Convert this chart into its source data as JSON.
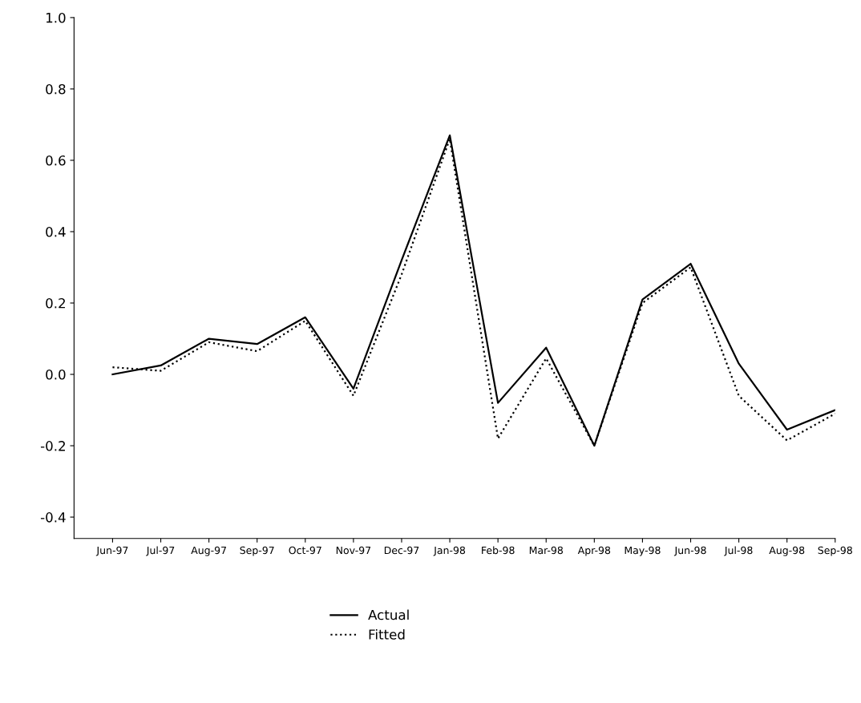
{
  "chart_data": {
    "type": "line",
    "categories": [
      "Jun-97",
      "Jul-97",
      "Aug-97",
      "Sep-97",
      "Oct-97",
      "Nov-97",
      "Dec-97",
      "Jan-98",
      "Feb-98",
      "Mar-98",
      "Apr-98",
      "May-98",
      "Jun-98",
      "Jul-98",
      "Aug-98",
      "Sep-98"
    ],
    "series": [
      {
        "name": "Actual",
        "color": "#000000",
        "line_style": "solid",
        "values": [
          0.0,
          0.025,
          0.1,
          0.085,
          0.16,
          -0.04,
          0.32,
          0.67,
          -0.08,
          0.075,
          -0.2,
          0.21,
          0.31,
          0.03,
          -0.155,
          -0.1
        ]
      },
      {
        "name": "Fitted",
        "color": "#000000",
        "line_style": "dotted",
        "values": [
          0.02,
          0.01,
          0.09,
          0.065,
          0.15,
          -0.06,
          0.28,
          0.66,
          -0.18,
          0.045,
          -0.2,
          0.2,
          0.3,
          -0.06,
          -0.185,
          -0.11
        ]
      }
    ],
    "ylim": [
      -0.46,
      1.0
    ],
    "yticks": [
      {
        "value": -0.4,
        "label": "-0.4"
      },
      {
        "value": -0.2,
        "label": "-0.2"
      },
      {
        "value": 0.0,
        "label": "0.0"
      },
      {
        "value": 0.2,
        "label": "0.2"
      },
      {
        "value": 0.4,
        "label": "0.4"
      },
      {
        "value": 0.6,
        "label": "0.6"
      },
      {
        "value": 0.8,
        "label": "0.8"
      },
      {
        "value": 1.0,
        "label": "1.0"
      }
    ],
    "grid": false,
    "legend": "bottom",
    "marker": "none"
  }
}
